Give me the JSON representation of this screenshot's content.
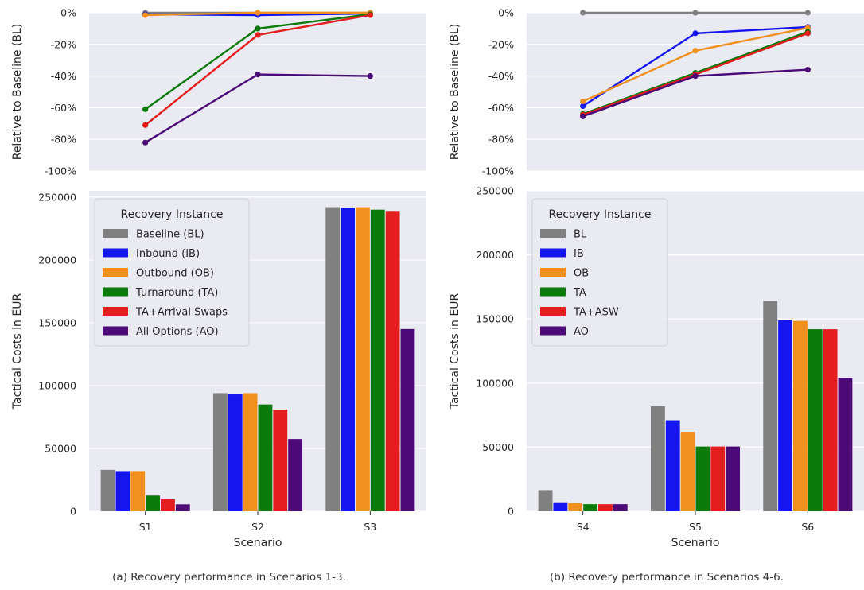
{
  "captions": {
    "left": "(a) Recovery performance in Scenarios 1-3.",
    "right": "(b) Recovery performance in Scenarios 4-6."
  },
  "colors": {
    "background": "#EAEAF2",
    "grid": "#FFFFFF",
    "series": [
      "#808080",
      "#1515F0",
      "#F0901E",
      "#0A7A0A",
      "#E41E1E",
      "#4B0A78"
    ]
  },
  "chart_data": [
    {
      "id": "left-relative",
      "type": "line",
      "categories": [
        "S1",
        "S2",
        "S3"
      ],
      "ylabel": "Relative to Baseline (BL)",
      "ylim": [
        -100,
        0
      ],
      "yticks": [
        0,
        -20,
        -40,
        -60,
        -80,
        -100
      ],
      "ytick_labels": [
        "0%",
        "-20%",
        "-40%",
        "-60%",
        "-80%",
        "-100%"
      ],
      "grid": true,
      "series": [
        {
          "name": "Baseline (BL)",
          "values": [
            0,
            0,
            0
          ]
        },
        {
          "name": "Inbound (IB)",
          "values": [
            -1,
            -1.5,
            -0.5
          ]
        },
        {
          "name": "Outbound (OB)",
          "values": [
            -1.5,
            0,
            0
          ]
        },
        {
          "name": "Turnaround (TA)",
          "values": [
            -61,
            -10,
            -1
          ]
        },
        {
          "name": "TA+Arrival Swaps",
          "values": [
            -71,
            -14,
            -1.5
          ]
        },
        {
          "name": "All Options (AO)",
          "values": [
            -82,
            -39,
            -40
          ]
        }
      ]
    },
    {
      "id": "left-costs",
      "type": "bar",
      "categories": [
        "S1",
        "S2",
        "S3"
      ],
      "xlabel": "Scenario",
      "ylabel": "Tactical Costs in EUR",
      "ylim": [
        0,
        255000
      ],
      "yticks": [
        0,
        50000,
        100000,
        150000,
        200000,
        250000
      ],
      "ytick_labels": [
        "0",
        "50000",
        "100000",
        "150000",
        "200000",
        "250000"
      ],
      "grid": true,
      "legend": {
        "title": "Recovery Instance",
        "placement": "upper-left",
        "labels": [
          "Baseline (BL)",
          "Inbound (IB)",
          "Outbound (OB)",
          "Turnaround (TA)",
          "TA+Arrival Swaps",
          "All Options (AO)"
        ]
      },
      "series": [
        {
          "name": "Baseline (BL)",
          "values": [
            33000,
            94000,
            242000
          ]
        },
        {
          "name": "Inbound (IB)",
          "values": [
            32000,
            93000,
            241500
          ]
        },
        {
          "name": "Outbound (OB)",
          "values": [
            32000,
            94000,
            242000
          ]
        },
        {
          "name": "Turnaround (TA)",
          "values": [
            12500,
            85000,
            240000
          ]
        },
        {
          "name": "TA+Arrival Swaps",
          "values": [
            9500,
            81000,
            239000
          ]
        },
        {
          "name": "All Options (AO)",
          "values": [
            5500,
            57500,
            145000
          ]
        }
      ]
    },
    {
      "id": "right-relative",
      "type": "line",
      "categories": [
        "S4",
        "S5",
        "S6"
      ],
      "ylabel": "Relative to Baseline (BL)",
      "ylim": [
        -100,
        0
      ],
      "yticks": [
        0,
        -20,
        -40,
        -60,
        -80,
        -100
      ],
      "ytick_labels": [
        "0%",
        "-20%",
        "-40%",
        "-60%",
        "-80%",
        "-100%"
      ],
      "grid": true,
      "series": [
        {
          "name": "BL",
          "values": [
            0,
            0,
            0
          ]
        },
        {
          "name": "IB",
          "values": [
            -59,
            -13,
            -9
          ]
        },
        {
          "name": "OB",
          "values": [
            -56,
            -24,
            -9.5
          ]
        },
        {
          "name": "TA",
          "values": [
            -64,
            -38,
            -12
          ]
        },
        {
          "name": "TA+ASW",
          "values": [
            -64.5,
            -39,
            -13
          ]
        },
        {
          "name": "AO",
          "values": [
            -65.5,
            -40,
            -36
          ]
        }
      ]
    },
    {
      "id": "right-costs",
      "type": "bar",
      "categories": [
        "S4",
        "S5",
        "S6"
      ],
      "xlabel": "Scenario",
      "ylabel": "Tactical Costs in EUR",
      "ylim": [
        0,
        250000
      ],
      "yticks": [
        0,
        50000,
        100000,
        150000,
        200000,
        250000
      ],
      "ytick_labels": [
        "0",
        "50000",
        "100000",
        "150000",
        "200000",
        "250000"
      ],
      "grid": true,
      "legend": {
        "title": "Recovery Instance",
        "placement": "upper-left",
        "labels": [
          "BL",
          "IB",
          "OB",
          "TA",
          "TA+ASW",
          "AO"
        ]
      },
      "series": [
        {
          "name": "BL",
          "values": [
            16500,
            82000,
            164000
          ]
        },
        {
          "name": "IB",
          "values": [
            7000,
            71000,
            149000
          ]
        },
        {
          "name": "OB",
          "values": [
            6500,
            62000,
            148500
          ]
        },
        {
          "name": "TA",
          "values": [
            5500,
            50500,
            142000
          ]
        },
        {
          "name": "TA+ASW",
          "values": [
            5500,
            50500,
            142000
          ]
        },
        {
          "name": "AO",
          "values": [
            5500,
            50500,
            104000
          ]
        }
      ]
    }
  ]
}
